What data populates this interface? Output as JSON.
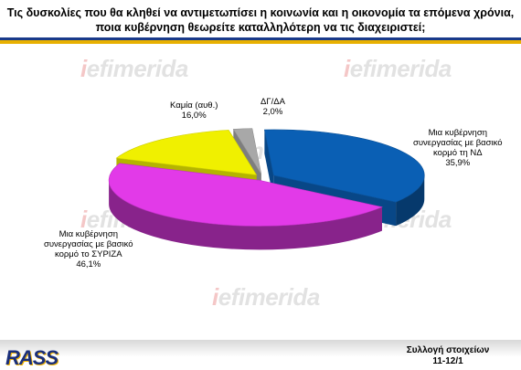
{
  "header": {
    "title_line1": "Τις δυσκολίες που θα κληθεί να αντιμετωπίσει η κοινωνία και η οικονομία τα επόμενα χρόνια,",
    "title_line2": "ποια κυβέρνηση θεωρείτε καταλληλότερη να τις διαχειριστεί;"
  },
  "watermark": {
    "text": "efimerida",
    "prefix": "i"
  },
  "footer": {
    "logo": "RASS",
    "note_line1": "Συλλογή στοιχείων",
    "note_line2": "11-12/1"
  },
  "colors": {
    "nd": "#0a5fb4",
    "syriza": "#e23ae8",
    "none": "#f0f000",
    "dk": "#a8a8a8",
    "rule_blue": "#1a3a8a",
    "rule_gold": "#e8b000"
  },
  "chart_data": {
    "type": "pie",
    "title": "Τις δυσκολίες που θα κληθεί να αντιμετωπίσει η κοινωνία και η οικονομία τα επόμενα χρόνια, ποια κυβέρνηση θεωρείτε καταλληλότερη να τις διαχειριστεί;",
    "slices": [
      {
        "label": "Μια κυβέρνηση συνεργασίας με βασικό κορμό τη ΝΔ",
        "value": 35.9,
        "value_label": "35,9%"
      },
      {
        "label": "Μια κυβέρνηση συνεργασίας με βασικό κορμό το ΣΥΡΙΖΑ",
        "value": 46.1,
        "value_label": "46,1%"
      },
      {
        "label": "Καμία (αυθ.)",
        "value": 16.0,
        "value_label": "16,0%"
      },
      {
        "label": "ΔΓ/ΔΑ",
        "value": 2.0,
        "value_label": "2,0%"
      }
    ],
    "labels": {
      "nd": [
        "Μια κυβέρνηση",
        "συνεργασίας με βασικό",
        "κορμό τη ΝΔ",
        "35,9%"
      ],
      "syriza": [
        "Μια κυβέρνηση",
        "συνεργασίας με βασικό",
        "κορμό το ΣΥΡΙΖΑ",
        "46,1%"
      ],
      "none": [
        "Καμία (αυθ.)",
        "16,0%"
      ],
      "dk": [
        "ΔΓ/ΔΑ",
        "2,0%"
      ]
    }
  }
}
